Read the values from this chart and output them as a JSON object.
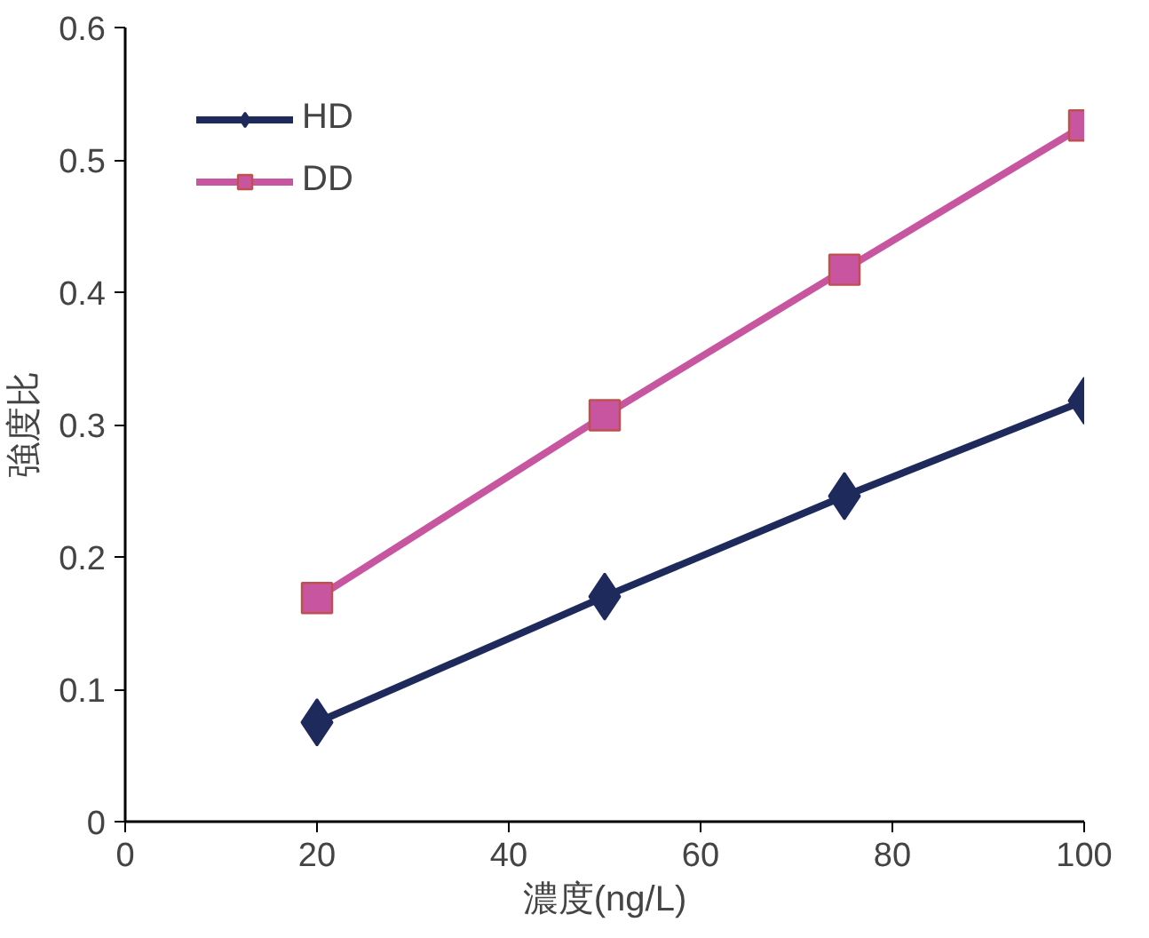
{
  "chart_data": {
    "type": "line",
    "xlabel": "濃度(ng/L)",
    "ylabel": "強度比",
    "x": [
      20,
      50,
      75,
      100
    ],
    "series": [
      {
        "name": "HD",
        "color": "#1f2a5c",
        "marker": "diamond",
        "values": [
          0.075,
          0.17,
          0.246,
          0.318
        ]
      },
      {
        "name": "DD",
        "color": "#c8559f",
        "marker": "square",
        "values": [
          0.169,
          0.307,
          0.417,
          0.526
        ]
      }
    ],
    "xlim": [
      0,
      100
    ],
    "xticks": [
      0,
      20,
      40,
      60,
      80,
      100
    ],
    "ylim": [
      0,
      0.6
    ],
    "yticks": [
      0,
      0.1,
      0.2,
      0.3,
      0.4,
      0.5,
      0.6
    ],
    "grid": false,
    "legend": "top left",
    "line_style": "solid"
  }
}
